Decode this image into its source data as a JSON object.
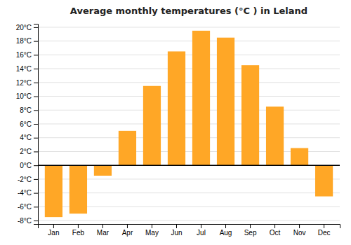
{
  "chart_data": {
    "type": "bar",
    "title": "Average monthly temperatures (°C ) in Leland",
    "categories": [
      "Jan",
      "Feb",
      "Mar",
      "Apr",
      "May",
      "Jun",
      "Jul",
      "Aug",
      "Sep",
      "Oct",
      "Nov",
      "Dec"
    ],
    "values": [
      -7.5,
      -7.0,
      -1.5,
      5.0,
      11.5,
      16.5,
      19.5,
      18.5,
      14.5,
      8.5,
      2.5,
      -4.5
    ],
    "color": "#FFA726",
    "ylim": [
      -8.5,
      20.5
    ],
    "yticks": [
      {
        "value": -8,
        "label": "-8°C"
      },
      {
        "value": -6,
        "label": "-6°C"
      },
      {
        "value": -4,
        "label": "-4°C"
      },
      {
        "value": -2,
        "label": "-2°C"
      },
      {
        "value": 0,
        "label": "0°C"
      },
      {
        "value": 2,
        "label": "2°C"
      },
      {
        "value": 4,
        "label": "4°C"
      },
      {
        "value": 6,
        "label": "6°C"
      },
      {
        "value": 8,
        "label": "8°C"
      },
      {
        "value": 10,
        "label": "10°C"
      },
      {
        "value": 12,
        "label": "12°C"
      },
      {
        "value": 14,
        "label": "14°C"
      },
      {
        "value": 16,
        "label": "16°C"
      },
      {
        "value": 18,
        "label": "18°C"
      },
      {
        "value": 20,
        "label": "20°C"
      }
    ],
    "grid": true
  }
}
